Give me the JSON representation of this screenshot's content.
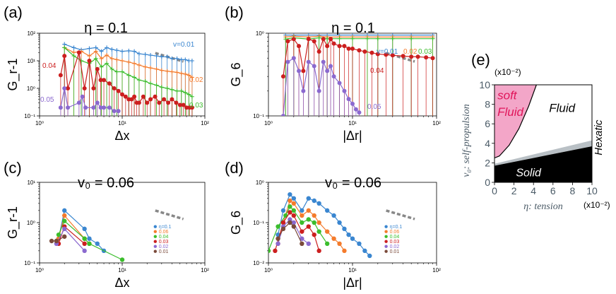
{
  "chart_data": [
    {
      "panel": "(a)",
      "type": "line",
      "title": "η = 0.1",
      "xlabel": "Δx",
      "ylabel": "G_r-1",
      "xscale": "log",
      "yscale": "log",
      "xlim": [
        1,
        100
      ],
      "ylim": [
        0.1,
        100
      ],
      "xticks": [
        "10⁰",
        "10¹",
        "10²"
      ],
      "yticks": [
        "10⁻¹",
        "10⁰",
        "10¹",
        "10²"
      ],
      "annotations": [
        "v=0.01",
        "0.02",
        "0.03",
        "0.04",
        "0.05"
      ],
      "series": [
        {
          "name": "v=0.01",
          "color": "#3a86d0",
          "marker": "plus",
          "x": [
            2.0,
            2.6,
            3.2,
            4.0,
            4.8,
            5.6,
            6.5,
            7.5,
            8.6,
            10,
            12,
            14,
            16,
            19,
            22,
            26,
            30,
            35,
            40,
            46,
            52,
            58,
            64,
            70
          ],
          "values": [
            40,
            30,
            25,
            28,
            30,
            22,
            30,
            26,
            24,
            22,
            23,
            22,
            18,
            17,
            16,
            15,
            14,
            14,
            12,
            12,
            11,
            11,
            10,
            10
          ]
        },
        {
          "name": "0.02",
          "color": "#f47b2c",
          "marker": "plus",
          "x": [
            2.0,
            2.6,
            3.2,
            4.0,
            4.8,
            5.6,
            6.5,
            7.5,
            8.6,
            10,
            12,
            14,
            16,
            19,
            22,
            26,
            30,
            35,
            40,
            46,
            52,
            58,
            64,
            70
          ],
          "values": [
            30,
            20,
            22,
            15,
            22,
            12,
            16,
            12,
            11,
            10,
            9,
            8,
            7,
            6,
            5.5,
            5,
            4.5,
            4.2,
            4,
            3.8,
            3.5,
            3.3,
            3,
            2.5
          ]
        },
        {
          "name": "0.03",
          "color": "#3bbd2c",
          "marker": "plus",
          "x": [
            2.0,
            2.6,
            3.2,
            4.0,
            4.8,
            5.6,
            6.5,
            7.5,
            8.6,
            10,
            12,
            14,
            16,
            19,
            22,
            26,
            30,
            35,
            40,
            46,
            52,
            58,
            64,
            70
          ],
          "values": [
            30,
            15,
            10,
            8,
            12,
            6,
            8,
            5,
            4,
            4,
            3,
            2.5,
            2,
            1.8,
            1.5,
            1.3,
            1.1,
            1,
            0.9,
            0.8,
            0.8,
            0.7,
            0.6,
            0.5
          ]
        },
        {
          "name": "0.04",
          "color": "#cc1f1f",
          "marker": "circle",
          "x": [
            1.8,
            2.0,
            2.2,
            3.0,
            3.5,
            4.0,
            4.5,
            5.0,
            5.5,
            6.0,
            7.0,
            8.0,
            9.0,
            10,
            11,
            12,
            13,
            14,
            15,
            16,
            18,
            20,
            22,
            25,
            28,
            32,
            36,
            40,
            45,
            50,
            55,
            60,
            65,
            70
          ],
          "values": [
            3,
            15,
            1,
            20,
            1,
            10,
            1,
            5,
            2,
            2,
            1.5,
            1,
            0.8,
            0.6,
            0.5,
            0.4,
            0.4,
            0.5,
            0.3,
            0.3,
            0.5,
            0.3,
            0.4,
            0.5,
            0.3,
            0.4,
            0.3,
            0.4,
            0.3,
            0.25,
            0.25,
            0.2,
            0.2,
            0.2
          ]
        },
        {
          "name": "0.05",
          "color": "#8b69cf",
          "marker": "circle",
          "x": [
            1.8,
            2.0,
            2.2,
            3.0,
            3.3,
            3.6,
            4.5,
            5.0,
            5.5,
            6.0,
            7.0,
            8.0,
            9.0
          ],
          "values": [
            0.2,
            1,
            0.2,
            0.3,
            0.5,
            0.2,
            0.2,
            0.3,
            0.2,
            0.2,
            0.2,
            0.15,
            0.15
          ]
        }
      ]
    },
    {
      "panel": "(b)",
      "type": "line",
      "title": "η = 0.1",
      "xlabel": "|Δr|",
      "ylabel": "G_6",
      "xscale": "log",
      "yscale": "log",
      "xlim": [
        1,
        100
      ],
      "ylim": [
        0.1,
        1
      ],
      "xticks": [
        "10⁰",
        "10¹",
        "10²"
      ],
      "yticks": [
        "10⁻¹",
        "10⁰"
      ],
      "annotations": [
        "v=0.01",
        "0.02",
        "0.03",
        "0.04",
        "0.05"
      ],
      "series": [
        {
          "name": "v=0.01",
          "color": "#3a86d0",
          "marker": "plus",
          "x": [
            1.6,
            2,
            3,
            4,
            5,
            7,
            10,
            15,
            20,
            30,
            50,
            90
          ],
          "values": [
            0.95,
            0.95,
            0.95,
            0.95,
            0.95,
            0.95,
            0.95,
            0.95,
            0.95,
            0.95,
            0.95,
            0.95
          ]
        },
        {
          "name": "0.02",
          "color": "#f47b2c",
          "marker": "plus",
          "x": [
            1.6,
            2,
            3,
            4,
            5,
            7,
            10,
            15,
            20,
            30,
            50,
            90
          ],
          "values": [
            0.9,
            0.92,
            0.9,
            0.92,
            0.9,
            0.9,
            0.9,
            0.9,
            0.9,
            0.9,
            0.9,
            0.9
          ]
        },
        {
          "name": "0.03",
          "color": "#3bbd2c",
          "marker": "plus",
          "x": [
            1.6,
            2,
            3,
            4,
            5,
            7,
            10,
            15,
            20,
            30,
            50,
            90
          ],
          "values": [
            0.85,
            0.88,
            0.85,
            0.88,
            0.86,
            0.86,
            0.86,
            0.86,
            0.86,
            0.86,
            0.86,
            0.86
          ]
        },
        {
          "name": "0.04",
          "color": "#cc1f1f",
          "marker": "circle",
          "x": [
            1.5,
            1.7,
            2,
            2.3,
            2.6,
            3.0,
            3.5,
            4.0,
            4.5,
            5,
            5.5,
            6,
            7,
            8,
            9,
            10,
            12,
            14,
            17,
            20,
            25,
            30,
            40,
            50,
            60,
            75,
            90
          ],
          "values": [
            0.3,
            0.8,
            0.85,
            0.7,
            0.35,
            0.85,
            0.8,
            0.6,
            0.85,
            0.7,
            0.85,
            0.75,
            0.7,
            0.7,
            0.65,
            0.65,
            0.62,
            0.6,
            0.58,
            0.56,
            0.55,
            0.54,
            0.53,
            0.52,
            0.52,
            0.51,
            0.5
          ]
        },
        {
          "name": "0.05",
          "color": "#8b69cf",
          "marker": "circle",
          "x": [
            1.5,
            1.7,
            2,
            2.3,
            2.6,
            3.0,
            3.5,
            4.0,
            4.5,
            5,
            5.5,
            6,
            7,
            8,
            9,
            10,
            11,
            12
          ],
          "values": [
            0.1,
            0.45,
            0.5,
            0.35,
            0.2,
            0.45,
            0.4,
            0.2,
            0.45,
            0.35,
            0.4,
            0.3,
            0.25,
            0.2,
            0.16,
            0.14,
            0.12,
            0.11
          ]
        }
      ]
    },
    {
      "panel": "(c)",
      "type": "line",
      "title": "v₀ = 0.06",
      "xlabel": "Δx",
      "ylabel": "G_r-1",
      "xscale": "log",
      "yscale": "log",
      "xlim": [
        1,
        100
      ],
      "ylim": [
        0.1,
        10
      ],
      "xticks": [
        "10⁰",
        "10¹",
        "10²"
      ],
      "yticks": [
        "10⁻¹",
        "10⁰",
        "10¹"
      ],
      "legend": [
        "η=0.1",
        "0.06",
        "0.04",
        "0.03",
        "0.02",
        "0.01"
      ],
      "series": [
        {
          "name": "η=0.1",
          "color": "#3a86d0",
          "x": [
            1.7,
            2.0,
            3.5,
            4.0,
            5.0,
            6.0
          ],
          "values": [
            0.4,
            2.0,
            0.7,
            0.4,
            0.3,
            0.2
          ]
        },
        {
          "name": "0.06",
          "color": "#f47b2c",
          "x": [
            1.7,
            2.0,
            3.5,
            4.0
          ],
          "values": [
            0.4,
            1.5,
            0.4,
            0.3
          ]
        },
        {
          "name": "0.04",
          "color": "#3bbd2c",
          "x": [
            1.7,
            2.0,
            3.5,
            4.0,
            10.0
          ],
          "values": [
            0.5,
            1.1,
            0.4,
            0.3,
            0.12
          ]
        },
        {
          "name": "0.03",
          "color": "#cc1f1f",
          "x": [
            1.7,
            2.0,
            3.5
          ],
          "values": [
            0.3,
            0.8,
            0.3
          ]
        },
        {
          "name": "0.02",
          "color": "#8b69cf",
          "x": [
            1.6,
            2.0,
            3.5
          ],
          "values": [
            0.3,
            0.7,
            0.2
          ]
        },
        {
          "name": "0.01",
          "color": "#7a4a3a",
          "x": [
            1.4,
            1.6,
            2.0
          ],
          "values": [
            0.35,
            0.35,
            0.45
          ]
        }
      ]
    },
    {
      "panel": "(d)",
      "type": "line",
      "title": "v₀ = 0.06",
      "xlabel": "|Δr|",
      "ylabel": "G_6",
      "xscale": "log",
      "yscale": "log",
      "xlim": [
        1,
        100
      ],
      "ylim": [
        0.01,
        1
      ],
      "xticks": [
        "10⁰",
        "10¹",
        "10²"
      ],
      "yticks": [
        "10⁻²",
        "10⁻¹",
        "10⁰"
      ],
      "legend": [
        "η=0.1",
        "0.06",
        "0.04",
        "0.03",
        "0.02",
        "0.01"
      ],
      "series": [
        {
          "name": "η=0.1",
          "color": "#3a86d0",
          "x": [
            1.3,
            1.5,
            1.8,
            2.0,
            2.5,
            3.0,
            3.5,
            4.0,
            5.0,
            6.0,
            7.0,
            8.0,
            9.0,
            10,
            12,
            14,
            16
          ],
          "values": [
            0.05,
            0.2,
            0.5,
            0.4,
            0.2,
            0.4,
            0.35,
            0.3,
            0.2,
            0.15,
            0.1,
            0.07,
            0.05,
            0.04,
            0.03,
            0.02,
            0.015
          ]
        },
        {
          "name": "0.06",
          "color": "#f47b2c",
          "x": [
            1.3,
            1.5,
            1.8,
            2.0,
            2.5,
            3.0,
            3.5,
            4.0,
            5.0,
            6.0,
            7.0,
            8.0
          ],
          "values": [
            0.03,
            0.1,
            0.35,
            0.3,
            0.15,
            0.2,
            0.15,
            0.1,
            0.06,
            0.04,
            0.03,
            0.02
          ]
        },
        {
          "name": "0.04",
          "color": "#3bbd2c",
          "x": [
            1.0,
            1.3,
            1.6,
            1.8,
            2.0,
            2.5,
            3.0,
            3.5,
            4.0,
            5.0
          ],
          "values": [
            0.02,
            0.08,
            0.15,
            0.25,
            0.2,
            0.1,
            0.12,
            0.1,
            0.06,
            0.03
          ]
        },
        {
          "name": "0.03",
          "color": "#cc1f1f",
          "x": [
            1.2,
            1.5,
            1.8,
            2.0,
            2.5,
            3.0,
            3.5,
            4.0
          ],
          "values": [
            0.02,
            0.1,
            0.18,
            0.15,
            0.06,
            0.08,
            0.05,
            0.02
          ]
        },
        {
          "name": "0.02",
          "color": "#8b69cf",
          "x": [
            1.3,
            1.5,
            1.8,
            2.0,
            2.5,
            3.0
          ],
          "values": [
            0.03,
            0.08,
            0.12,
            0.1,
            0.04,
            0.03
          ]
        },
        {
          "name": "0.01",
          "color": "#7a4a3a",
          "x": [
            1.3,
            1.5,
            1.8,
            2.0,
            2.5
          ],
          "values": [
            0.04,
            0.07,
            0.1,
            0.08,
            0.03
          ]
        }
      ]
    },
    {
      "panel": "(e)",
      "type": "area",
      "title": "",
      "xlabel": "η: tension",
      "ylabel": "v₀: self-propulsion",
      "xlim": [
        0,
        10
      ],
      "ylim": [
        0,
        10
      ],
      "xticks": [
        "0",
        "2",
        "4",
        "6",
        "8",
        "10"
      ],
      "yticks": [
        "0",
        "2",
        "4",
        "6",
        "8",
        "10"
      ],
      "x_multiplier": "(x10⁻²)",
      "y_multiplier": "(x10⁻²)",
      "regions": [
        {
          "name": "soft Fluid",
          "color": "#f3a6c8",
          "boundary_x": [
            0,
            0.5,
            1.5,
            2.5,
            3.5,
            4.3
          ],
          "boundary_y": [
            2.5,
            2.7,
            3.8,
            5.5,
            7.8,
            10
          ]
        },
        {
          "name": "Fluid",
          "color": "#ffffff"
        },
        {
          "name": "Hexatic",
          "color": "#b9c0c5",
          "lower_y": [
            1.7,
            3.7
          ],
          "upper_y": [
            1.9,
            4.3
          ],
          "x": [
            0,
            10
          ]
        },
        {
          "name": "Solid",
          "color": "#000000",
          "boundary_x": [
            0,
            10
          ],
          "boundary_y": [
            1.7,
            3.7
          ]
        }
      ],
      "labels": [
        "soft",
        "Fluid",
        "Fluid",
        "Hexatic",
        "Solid"
      ]
    }
  ],
  "labels": {
    "a": "(a)",
    "b": "(b)",
    "c": "(c)",
    "d": "(d)",
    "e": "(e)"
  }
}
